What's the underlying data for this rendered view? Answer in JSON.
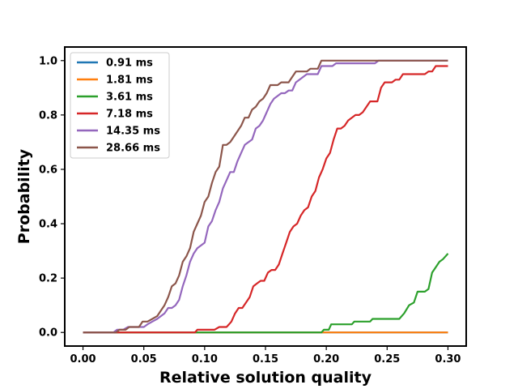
{
  "chart_data": {
    "type": "line",
    "title": "",
    "xlabel": "Relative solution quality",
    "ylabel": "Probability",
    "xlim": [
      -0.015,
      0.315
    ],
    "ylim": [
      -0.05,
      1.05
    ],
    "xticks": [
      "0.00",
      "0.05",
      "0.10",
      "0.15",
      "0.20",
      "0.25",
      "0.30"
    ],
    "yticks": [
      "0.0",
      "0.2",
      "0.4",
      "0.6",
      "0.8",
      "1.0"
    ],
    "legend_position": "upper left",
    "grid": false,
    "series": [
      {
        "name": "0.91 ms",
        "color": "#1f77b4",
        "points": [
          [
            0.0,
            0.0
          ],
          [
            0.3,
            0.0
          ]
        ]
      },
      {
        "name": "1.81 ms",
        "color": "#ff7f0e",
        "points": [
          [
            0.0,
            0.0
          ],
          [
            0.3,
            0.0
          ]
        ]
      },
      {
        "name": "3.61 ms",
        "color": "#2ca02c",
        "points": [
          [
            0.0,
            0.0
          ],
          [
            0.196,
            0.0
          ],
          [
            0.198,
            0.01
          ],
          [
            0.202,
            0.01
          ],
          [
            0.204,
            0.03
          ],
          [
            0.221,
            0.03
          ],
          [
            0.223,
            0.04
          ],
          [
            0.236,
            0.04
          ],
          [
            0.238,
            0.05
          ],
          [
            0.26,
            0.05
          ],
          [
            0.264,
            0.07
          ],
          [
            0.268,
            0.1
          ],
          [
            0.272,
            0.11
          ],
          [
            0.275,
            0.15
          ],
          [
            0.281,
            0.15
          ],
          [
            0.284,
            0.16
          ],
          [
            0.287,
            0.22
          ],
          [
            0.29,
            0.24
          ],
          [
            0.293,
            0.26
          ],
          [
            0.296,
            0.27
          ],
          [
            0.3,
            0.29
          ]
        ]
      },
      {
        "name": "7.18 ms",
        "color": "#d62728",
        "points": [
          [
            0.0,
            0.0
          ],
          [
            0.092,
            0.0
          ],
          [
            0.094,
            0.01
          ],
          [
            0.108,
            0.01
          ],
          [
            0.112,
            0.02
          ],
          [
            0.118,
            0.02
          ],
          [
            0.12,
            0.03
          ],
          [
            0.122,
            0.04
          ],
          [
            0.125,
            0.07
          ],
          [
            0.128,
            0.09
          ],
          [
            0.131,
            0.09
          ],
          [
            0.134,
            0.11
          ],
          [
            0.137,
            0.13
          ],
          [
            0.14,
            0.17
          ],
          [
            0.143,
            0.18
          ],
          [
            0.146,
            0.19
          ],
          [
            0.149,
            0.19
          ],
          [
            0.152,
            0.22
          ],
          [
            0.155,
            0.23
          ],
          [
            0.158,
            0.23
          ],
          [
            0.161,
            0.25
          ],
          [
            0.164,
            0.29
          ],
          [
            0.167,
            0.33
          ],
          [
            0.17,
            0.37
          ],
          [
            0.173,
            0.39
          ],
          [
            0.176,
            0.4
          ],
          [
            0.179,
            0.43
          ],
          [
            0.182,
            0.45
          ],
          [
            0.185,
            0.46
          ],
          [
            0.188,
            0.5
          ],
          [
            0.191,
            0.52
          ],
          [
            0.194,
            0.57
          ],
          [
            0.197,
            0.6
          ],
          [
            0.2,
            0.64
          ],
          [
            0.203,
            0.66
          ],
          [
            0.206,
            0.71
          ],
          [
            0.209,
            0.75
          ],
          [
            0.212,
            0.75
          ],
          [
            0.215,
            0.76
          ],
          [
            0.218,
            0.78
          ],
          [
            0.221,
            0.79
          ],
          [
            0.224,
            0.8
          ],
          [
            0.227,
            0.8
          ],
          [
            0.23,
            0.81
          ],
          [
            0.233,
            0.83
          ],
          [
            0.236,
            0.85
          ],
          [
            0.239,
            0.85
          ],
          [
            0.242,
            0.85
          ],
          [
            0.245,
            0.9
          ],
          [
            0.248,
            0.92
          ],
          [
            0.251,
            0.92
          ],
          [
            0.254,
            0.92
          ],
          [
            0.257,
            0.93
          ],
          [
            0.26,
            0.93
          ],
          [
            0.263,
            0.95
          ],
          [
            0.266,
            0.95
          ],
          [
            0.269,
            0.95
          ],
          [
            0.272,
            0.95
          ],
          [
            0.275,
            0.95
          ],
          [
            0.278,
            0.95
          ],
          [
            0.281,
            0.95
          ],
          [
            0.284,
            0.96
          ],
          [
            0.287,
            0.96
          ],
          [
            0.29,
            0.98
          ],
          [
            0.293,
            0.98
          ],
          [
            0.296,
            0.98
          ],
          [
            0.3,
            0.98
          ]
        ]
      },
      {
        "name": "14.35 ms",
        "color": "#9467bd",
        "points": [
          [
            0.0,
            0.0
          ],
          [
            0.025,
            0.0
          ],
          [
            0.028,
            0.01
          ],
          [
            0.033,
            0.01
          ],
          [
            0.037,
            0.02
          ],
          [
            0.042,
            0.02
          ],
          [
            0.046,
            0.02
          ],
          [
            0.05,
            0.02
          ],
          [
            0.053,
            0.03
          ],
          [
            0.057,
            0.04
          ],
          [
            0.061,
            0.05
          ],
          [
            0.064,
            0.06
          ],
          [
            0.067,
            0.07
          ],
          [
            0.07,
            0.09
          ],
          [
            0.073,
            0.09
          ],
          [
            0.076,
            0.1
          ],
          [
            0.079,
            0.12
          ],
          [
            0.082,
            0.17
          ],
          [
            0.085,
            0.21
          ],
          [
            0.088,
            0.26
          ],
          [
            0.091,
            0.29
          ],
          [
            0.094,
            0.31
          ],
          [
            0.097,
            0.32
          ],
          [
            0.1,
            0.33
          ],
          [
            0.103,
            0.39
          ],
          [
            0.106,
            0.41
          ],
          [
            0.109,
            0.45
          ],
          [
            0.112,
            0.48
          ],
          [
            0.115,
            0.53
          ],
          [
            0.118,
            0.56
          ],
          [
            0.121,
            0.59
          ],
          [
            0.124,
            0.59
          ],
          [
            0.127,
            0.63
          ],
          [
            0.13,
            0.66
          ],
          [
            0.133,
            0.69
          ],
          [
            0.136,
            0.7
          ],
          [
            0.139,
            0.71
          ],
          [
            0.142,
            0.75
          ],
          [
            0.145,
            0.76
          ],
          [
            0.148,
            0.78
          ],
          [
            0.151,
            0.81
          ],
          [
            0.154,
            0.84
          ],
          [
            0.157,
            0.86
          ],
          [
            0.16,
            0.87
          ],
          [
            0.163,
            0.88
          ],
          [
            0.166,
            0.88
          ],
          [
            0.169,
            0.89
          ],
          [
            0.172,
            0.89
          ],
          [
            0.175,
            0.92
          ],
          [
            0.178,
            0.93
          ],
          [
            0.181,
            0.94
          ],
          [
            0.184,
            0.95
          ],
          [
            0.187,
            0.95
          ],
          [
            0.19,
            0.95
          ],
          [
            0.193,
            0.95
          ],
          [
            0.196,
            0.98
          ],
          [
            0.199,
            0.98
          ],
          [
            0.202,
            0.98
          ],
          [
            0.205,
            0.98
          ],
          [
            0.208,
            0.99
          ],
          [
            0.215,
            0.99
          ],
          [
            0.24,
            0.99
          ],
          [
            0.243,
            1.0
          ],
          [
            0.3,
            1.0
          ]
        ]
      },
      {
        "name": "28.66 ms",
        "color": "#8c564b",
        "points": [
          [
            0.0,
            0.0
          ],
          [
            0.027,
            0.0
          ],
          [
            0.03,
            0.01
          ],
          [
            0.035,
            0.01
          ],
          [
            0.038,
            0.02
          ],
          [
            0.042,
            0.02
          ],
          [
            0.046,
            0.02
          ],
          [
            0.049,
            0.04
          ],
          [
            0.053,
            0.04
          ],
          [
            0.057,
            0.05
          ],
          [
            0.061,
            0.06
          ],
          [
            0.064,
            0.08
          ],
          [
            0.067,
            0.1
          ],
          [
            0.07,
            0.13
          ],
          [
            0.073,
            0.17
          ],
          [
            0.076,
            0.18
          ],
          [
            0.079,
            0.21
          ],
          [
            0.082,
            0.26
          ],
          [
            0.085,
            0.28
          ],
          [
            0.088,
            0.31
          ],
          [
            0.091,
            0.37
          ],
          [
            0.094,
            0.4
          ],
          [
            0.097,
            0.43
          ],
          [
            0.1,
            0.48
          ],
          [
            0.103,
            0.5
          ],
          [
            0.106,
            0.55
          ],
          [
            0.109,
            0.59
          ],
          [
            0.112,
            0.61
          ],
          [
            0.115,
            0.69
          ],
          [
            0.118,
            0.69
          ],
          [
            0.121,
            0.7
          ],
          [
            0.124,
            0.72
          ],
          [
            0.127,
            0.74
          ],
          [
            0.13,
            0.76
          ],
          [
            0.133,
            0.79
          ],
          [
            0.136,
            0.79
          ],
          [
            0.139,
            0.82
          ],
          [
            0.142,
            0.83
          ],
          [
            0.145,
            0.85
          ],
          [
            0.148,
            0.86
          ],
          [
            0.151,
            0.88
          ],
          [
            0.154,
            0.91
          ],
          [
            0.157,
            0.91
          ],
          [
            0.16,
            0.91
          ],
          [
            0.163,
            0.92
          ],
          [
            0.166,
            0.92
          ],
          [
            0.169,
            0.92
          ],
          [
            0.172,
            0.94
          ],
          [
            0.175,
            0.96
          ],
          [
            0.178,
            0.96
          ],
          [
            0.181,
            0.96
          ],
          [
            0.184,
            0.96
          ],
          [
            0.187,
            0.97
          ],
          [
            0.19,
            0.97
          ],
          [
            0.193,
            0.97
          ],
          [
            0.196,
            1.0
          ],
          [
            0.3,
            1.0
          ]
        ]
      }
    ]
  }
}
